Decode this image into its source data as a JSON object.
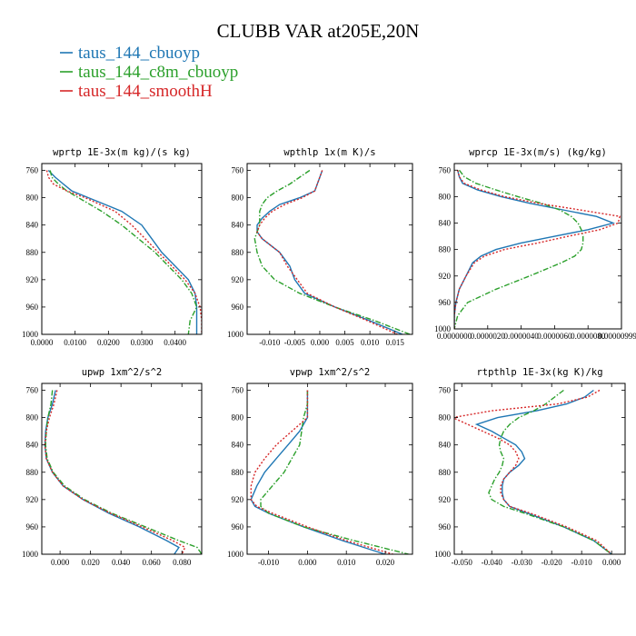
{
  "title": "CLUBB VAR at205E,20N",
  "legend": [
    {
      "label": "taus_144_cbuoyp",
      "color": "#1f77b4",
      "dash": "solid"
    },
    {
      "label": "taus_144_c8m_cbuoyp",
      "color": "#2ca02c",
      "dash": "dashdot"
    },
    {
      "label": "taus_144_smoothH",
      "color": "#d62728",
      "dash": "dotted"
    }
  ],
  "chart_data": [
    {
      "type": "line",
      "title": "wprtp  1E-3x(m kg)/(s kg)",
      "xlim": [
        0.0,
        0.048
      ],
      "xticks": [
        "0.0000",
        "0.0100",
        "0.0200",
        "0.0300",
        "0.0400"
      ],
      "xtick_values": [
        0.0,
        0.01,
        0.02,
        0.03,
        0.04
      ],
      "ylim": [
        750,
        1000
      ],
      "yticks": [
        "760",
        "800",
        "840",
        "880",
        "920",
        "960",
        "1000"
      ],
      "y": [
        760,
        770,
        780,
        790,
        800,
        820,
        840,
        860,
        880,
        900,
        920,
        940,
        960,
        980,
        1000
      ],
      "series": [
        {
          "name": "taus_144_cbuoyp",
          "values": [
            0.002,
            0.004,
            0.0065,
            0.009,
            0.014,
            0.024,
            0.03,
            0.033,
            0.036,
            0.04,
            0.044,
            0.046,
            0.0465,
            0.0465,
            0.0465
          ]
        },
        {
          "name": "taus_144_c8m_cbuoyp",
          "values": [
            0.0025,
            0.003,
            0.005,
            0.0075,
            0.011,
            0.018,
            0.024,
            0.029,
            0.034,
            0.038,
            0.042,
            0.045,
            0.0465,
            0.0445,
            0.044
          ]
        },
        {
          "name": "taus_144_smoothH",
          "values": [
            0.0015,
            0.002,
            0.0035,
            0.0075,
            0.013,
            0.022,
            0.027,
            0.031,
            0.035,
            0.039,
            0.043,
            0.046,
            0.0475,
            0.048,
            0.048
          ]
        }
      ]
    },
    {
      "type": "line",
      "title": "wpthlp  1x(m K)/s",
      "xlim": [
        -0.0145,
        0.0185
      ],
      "xticks": [
        "-0.010",
        "-0.005",
        "0.000",
        "0.005",
        "0.010",
        "0.015"
      ],
      "xtick_values": [
        -0.01,
        -0.005,
        0.0,
        0.005,
        0.01,
        0.015
      ],
      "ylim": [
        750,
        1000
      ],
      "yticks": [
        "760",
        "800",
        "840",
        "880",
        "920",
        "960",
        "1000"
      ],
      "y": [
        760,
        770,
        780,
        790,
        800,
        810,
        820,
        830,
        840,
        850,
        860,
        880,
        900,
        920,
        940,
        960,
        980,
        1000
      ],
      "series": [
        {
          "name": "taus_144_cbuoyp",
          "values": [
            0.0005,
            0.0,
            -0.0005,
            -0.001,
            -0.004,
            -0.008,
            -0.01,
            -0.0115,
            -0.0125,
            -0.0125,
            -0.0115,
            -0.008,
            -0.006,
            -0.005,
            -0.003,
            0.003,
            0.01,
            0.0165
          ]
        },
        {
          "name": "taus_144_c8m_cbuoyp",
          "values": [
            -0.002,
            -0.004,
            -0.006,
            -0.0085,
            -0.0105,
            -0.0115,
            -0.012,
            -0.012,
            -0.012,
            -0.0125,
            -0.013,
            -0.0125,
            -0.0115,
            -0.009,
            -0.004,
            0.003,
            0.011,
            0.018
          ]
        },
        {
          "name": "taus_144_smoothH",
          "values": [
            0.0005,
            0.0,
            -0.0005,
            -0.001,
            -0.0035,
            -0.007,
            -0.0095,
            -0.011,
            -0.012,
            -0.0125,
            -0.0115,
            -0.008,
            -0.0065,
            -0.0045,
            -0.0025,
            0.003,
            0.0095,
            0.0155
          ]
        }
      ]
    },
    {
      "type": "line",
      "title": "wprcp  1E-3x(m/s) (kg/kg)",
      "xlim": [
        0.0,
        1e-05
      ],
      "xticks": [
        "0.0000000",
        "0.0000020",
        "0.0000040",
        "0.0000060",
        "0.0000080",
        "0.0000099999"
      ],
      "xtick_values": [
        0.0,
        2e-06,
        4e-06,
        6e-06,
        8e-06,
        9.9999e-06
      ],
      "ylim": [
        750,
        1000
      ],
      "yticks": [
        "760",
        "800",
        "840",
        "880",
        "920",
        "960",
        "1000"
      ],
      "y": [
        760,
        770,
        780,
        790,
        800,
        810,
        820,
        830,
        840,
        850,
        860,
        870,
        880,
        890,
        900,
        920,
        940,
        960,
        980,
        1000
      ],
      "series": [
        {
          "name": "taus_144_cbuoyp",
          "values": [
            2e-07,
            3e-07,
            5e-07,
            1.4e-06,
            2.8e-06,
            4.5e-06,
            6.5e-06,
            8.5e-06,
            9.5e-06,
            8e-06,
            6e-06,
            4e-06,
            2.5e-06,
            1.6e-06,
            1.1e-06,
            7e-07,
            3e-07,
            1e-07,
            0.0,
            0.0
          ]
        },
        {
          "name": "taus_144_c8m_cbuoyp",
          "values": [
            3e-07,
            6e-07,
            1.3e-06,
            2.5e-06,
            3.8e-06,
            5.2e-06,
            6.3e-06,
            7e-06,
            7.4e-06,
            7.6e-06,
            7.7e-06,
            7.7e-06,
            7.6e-06,
            7.2e-06,
            6.4e-06,
            4.5e-06,
            2.5e-06,
            8e-07,
            2e-07,
            0.0
          ]
        },
        {
          "name": "taus_144_smoothH",
          "values": [
            2e-07,
            3e-07,
            6e-07,
            1.6e-06,
            3e-06,
            5e-06,
            7.5e-06,
            9.9e-06,
            9.8e-06,
            8.7e-06,
            6.8e-06,
            5e-06,
            3e-06,
            1.8e-06,
            1.2e-06,
            7e-07,
            3e-07,
            1e-07,
            0.0,
            0.0
          ]
        }
      ]
    },
    {
      "type": "line",
      "title": "upwp  1xm^2/s^2",
      "xlim": [
        -0.012,
        0.093
      ],
      "xticks": [
        "0.000",
        "0.020",
        "0.040",
        "0.060",
        "0.080"
      ],
      "xtick_values": [
        0.0,
        0.02,
        0.04,
        0.06,
        0.08
      ],
      "ylim": [
        750,
        1000
      ],
      "yticks": [
        "760",
        "800",
        "840",
        "880",
        "920",
        "960",
        "1000"
      ],
      "y": [
        760,
        780,
        800,
        820,
        840,
        860,
        880,
        900,
        920,
        940,
        960,
        980,
        990,
        1000
      ],
      "series": [
        {
          "name": "taus_144_cbuoyp",
          "values": [
            -0.003,
            -0.005,
            -0.008,
            -0.0095,
            -0.01,
            -0.009,
            -0.005,
            0.002,
            0.015,
            0.032,
            0.052,
            0.07,
            0.078,
            0.075
          ]
        },
        {
          "name": "taus_144_c8m_cbuoyp",
          "values": [
            -0.005,
            -0.006,
            -0.008,
            -0.009,
            -0.0095,
            -0.0085,
            -0.0045,
            0.003,
            0.016,
            0.034,
            0.056,
            0.078,
            0.09,
            0.093
          ]
        },
        {
          "name": "taus_144_smoothH",
          "values": [
            -0.002,
            -0.004,
            -0.007,
            -0.009,
            -0.01,
            -0.009,
            -0.005,
            0.002,
            0.015,
            0.033,
            0.054,
            0.074,
            0.082,
            0.08
          ]
        }
      ]
    },
    {
      "type": "line",
      "title": "vpwp  1xm^2/s^2",
      "xlim": [
        -0.0155,
        0.027
      ],
      "xticks": [
        "-0.010",
        "0.000",
        "0.010",
        "0.020"
      ],
      "xtick_values": [
        -0.01,
        0.0,
        0.01,
        0.02
      ],
      "ylim": [
        750,
        1000
      ],
      "yticks": [
        "760",
        "800",
        "840",
        "880",
        "920",
        "960",
        "1000"
      ],
      "y": [
        760,
        780,
        800,
        820,
        840,
        860,
        880,
        900,
        920,
        930,
        940,
        960,
        980,
        1000
      ],
      "series": [
        {
          "name": "taus_144_cbuoyp",
          "values": [
            0.0,
            0.0,
            0.0,
            -0.002,
            -0.005,
            -0.008,
            -0.011,
            -0.013,
            -0.0145,
            -0.0135,
            -0.01,
            -0.001,
            0.009,
            0.02
          ]
        },
        {
          "name": "taus_144_c8m_cbuoyp",
          "values": [
            0.0,
            0.0,
            -0.001,
            -0.0015,
            -0.002,
            -0.004,
            -0.006,
            -0.009,
            -0.012,
            -0.012,
            -0.01,
            -0.001,
            0.012,
            0.026
          ]
        },
        {
          "name": "taus_144_smoothH",
          "values": [
            0.0,
            0.0,
            0.0,
            -0.004,
            -0.008,
            -0.011,
            -0.0135,
            -0.0145,
            -0.0145,
            -0.013,
            -0.009,
            0.0,
            0.01,
            0.022
          ]
        }
      ]
    },
    {
      "type": "line",
      "title": "rtpthlp  1E-3x(kg K)/kg",
      "xlim": [
        -0.0525,
        0.0045
      ],
      "xticks": [
        "-0.050",
        "-0.040",
        "-0.030",
        "-0.020",
        "-0.010",
        "0.000"
      ],
      "xtick_values": [
        -0.05,
        -0.04,
        -0.03,
        -0.02,
        -0.01,
        0.0
      ],
      "ylim": [
        750,
        1000
      ],
      "yticks": [
        "760",
        "800",
        "840",
        "880",
        "920",
        "960",
        "1000"
      ],
      "y": [
        760,
        770,
        780,
        790,
        800,
        810,
        820,
        830,
        840,
        850,
        860,
        870,
        880,
        890,
        900,
        910,
        920,
        930,
        940,
        960,
        980,
        1000
      ],
      "series": [
        {
          "name": "taus_144_cbuoyp",
          "values": [
            -0.006,
            -0.009,
            -0.015,
            -0.025,
            -0.038,
            -0.045,
            -0.04,
            -0.036,
            -0.032,
            -0.03,
            -0.029,
            -0.031,
            -0.034,
            -0.036,
            -0.0365,
            -0.0365,
            -0.036,
            -0.034,
            -0.028,
            -0.016,
            -0.006,
            0.0
          ]
        },
        {
          "name": "taus_144_c8m_cbuoyp",
          "values": [
            -0.016,
            -0.019,
            -0.022,
            -0.026,
            -0.031,
            -0.034,
            -0.036,
            -0.037,
            -0.0375,
            -0.037,
            -0.036,
            -0.0365,
            -0.0375,
            -0.039,
            -0.04,
            -0.041,
            -0.04,
            -0.036,
            -0.029,
            -0.016,
            -0.006,
            0.0
          ]
        },
        {
          "name": "taus_144_smoothH",
          "values": [
            -0.004,
            -0.008,
            -0.018,
            -0.04,
            -0.053,
            -0.048,
            -0.043,
            -0.038,
            -0.034,
            -0.032,
            -0.031,
            -0.032,
            -0.034,
            -0.036,
            -0.037,
            -0.037,
            -0.036,
            -0.034,
            -0.027,
            -0.015,
            -0.005,
            0.0
          ]
        }
      ]
    }
  ]
}
